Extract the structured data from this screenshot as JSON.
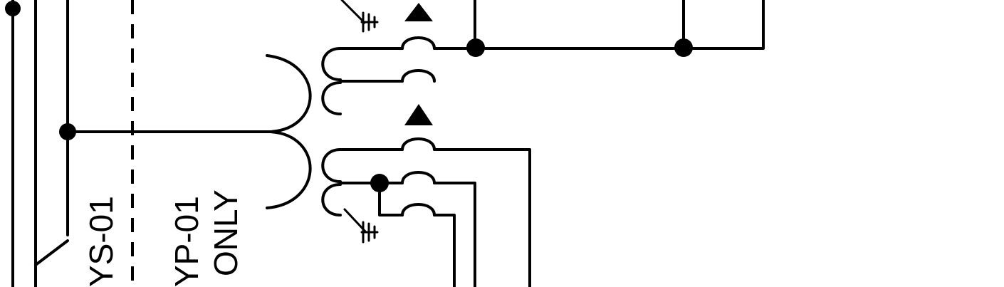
{
  "labels": {
    "ys_tag": "YS-01",
    "yp_tag": "YP-01",
    "only_note": "ONLY"
  }
}
